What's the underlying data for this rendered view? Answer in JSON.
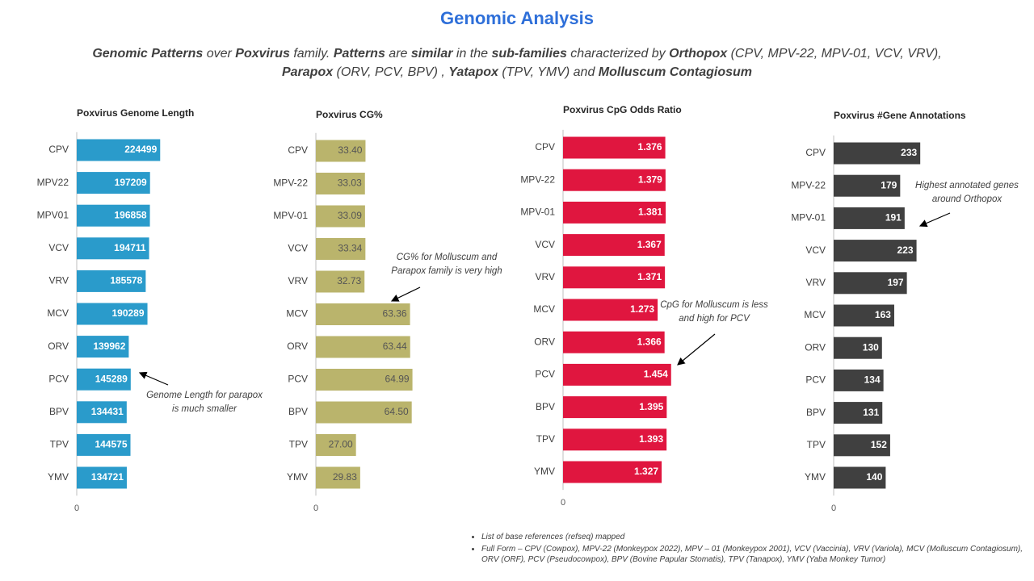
{
  "header": {
    "title": "Genomic Analysis",
    "subtitle": [
      [
        {
          "text": "Genomic Patterns",
          "bold": true
        },
        {
          "text": " over ",
          "bold": false
        },
        {
          "text": "Poxvirus",
          "bold": true
        },
        {
          "text": " family. ",
          "bold": false
        },
        {
          "text": "Patterns",
          "bold": true
        },
        {
          "text": " are ",
          "bold": false
        },
        {
          "text": "similar",
          "bold": true
        },
        {
          "text": " in the ",
          "bold": false
        },
        {
          "text": "sub-families",
          "bold": true
        },
        {
          "text": " characterized by ",
          "bold": false
        },
        {
          "text": "Orthopox",
          "bold": true
        },
        {
          "text": " (CPV, MPV-22, MPV-01, VCV, VRV),",
          "bold": false
        }
      ],
      [
        {
          "text": "Parapox",
          "bold": true
        },
        {
          "text": " (ORV, PCV, BPV) , ",
          "bold": false
        },
        {
          "text": "Yatapox",
          "bold": true
        },
        {
          "text": " (TPV, YMV) and ",
          "bold": false
        },
        {
          "text": "Molluscum Contagiosum",
          "bold": true
        }
      ]
    ]
  },
  "chart_data": [
    {
      "type": "bar",
      "orientation": "horizontal",
      "title": "Poxvirus Genome Length",
      "categories": [
        "CPV",
        "MPV22",
        "MPV01",
        "VCV",
        "VRV",
        "MCV",
        "ORV",
        "PCV",
        "BPV",
        "TPV",
        "YMV"
      ],
      "values": [
        224499,
        197209,
        196858,
        194711,
        185578,
        190289,
        139962,
        145289,
        134431,
        144575,
        134721
      ],
      "color": "#2a9bcb",
      "label_color": "#ffffff",
      "xlim": [
        0,
        500000
      ],
      "xticks": [
        0
      ],
      "annotation": "Genome Length for parapox is much smaller"
    },
    {
      "type": "bar",
      "orientation": "horizontal",
      "title": "Poxvirus CG%",
      "categories": [
        "CPV",
        "MPV-22",
        "MPV-01",
        "VCV",
        "VRV",
        "MCV",
        "ORV",
        "PCV",
        "BPV",
        "TPV",
        "YMV"
      ],
      "values": [
        33.4,
        33.03,
        33.09,
        33.34,
        32.73,
        63.36,
        63.44,
        64.99,
        64.5,
        27,
        29.83
      ],
      "value_labels": [
        "33.40",
        "33.03",
        "33.09",
        "33.34",
        "32.73",
        "63.36",
        "63.44",
        "64.99",
        "64.50",
        "27.00",
        "29.83"
      ],
      "color": "#bab46c",
      "label_color": "#555555",
      "xlim": [
        0,
        125
      ],
      "xticks": [
        0
      ],
      "annotation": "CG% for Molluscum and Parapox family is very high"
    },
    {
      "type": "bar",
      "orientation": "horizontal",
      "title": "Poxvirus CpG Odds Ratio",
      "categories": [
        "CPV",
        "MPV-22",
        "MPV-01",
        "VCV",
        "VRV",
        "MCV",
        "ORV",
        "PCV",
        "BPV",
        "TPV",
        "YMV"
      ],
      "values": [
        1.376,
        1.379,
        1.381,
        1.367,
        1.371,
        1.273,
        1.366,
        1.454,
        1.395,
        1.393,
        1.327
      ],
      "color": "#e0163f",
      "label_color": "#ffffff",
      "xlim": [
        0,
        2.5
      ],
      "xticks": [
        0
      ],
      "annotation": "CpG for Molluscum is less and high for PCV"
    },
    {
      "type": "bar",
      "orientation": "horizontal",
      "title": "Poxvirus #Gene Annotations",
      "categories": [
        "CPV",
        "MPV-22",
        "MPV-01",
        "VCV",
        "VRV",
        "MCV",
        "ORV",
        "PCV",
        "BPV",
        "TPV",
        "YMV"
      ],
      "values": [
        233,
        179,
        191,
        223,
        197,
        163,
        130,
        134,
        131,
        152,
        140
      ],
      "color": "#404040",
      "label_color": "#ffffff",
      "xlim": [
        0,
        500
      ],
      "xticks": [
        0
      ],
      "annotation": "Highest annotated genes around Orthopox"
    }
  ],
  "notes": [
    "List of base references (refseq) mapped",
    "Full Form – CPV (Cowpox), MPV-22 (Monkeypox 2022), MPV – 01 (Monkeypox 2001), VCV (Vaccinia), VRV (Variola), MCV (Molluscum Contagiosum), ORV (ORF), PCV (Pseudocowpox), BPV (Bovine Papular Stomatis), TPV (Tanapox), YMV (Yaba Monkey Tumor)"
  ]
}
